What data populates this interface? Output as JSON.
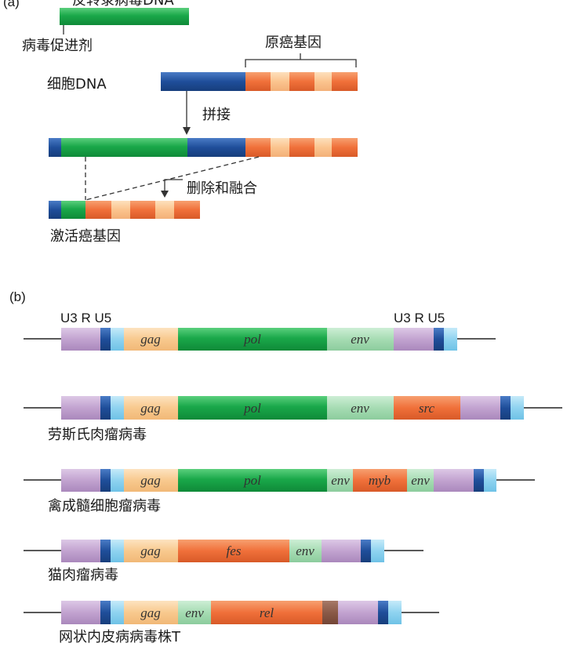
{
  "colors": {
    "viral_green": "#1aa84a",
    "dna_blue": "#1f4e9a",
    "onc_orange": "#f0703a",
    "onc_light": "#fbc48e",
    "ltr_purple": "#c2a3d0",
    "ltr_dark": "#1f4e9a",
    "ltr_light": "#8fd3f0",
    "gag_peach": "#f8c98e",
    "env_mint": "#a6dcb3",
    "rel_brown": "#8a5a48"
  },
  "panel_a": {
    "label": "(a)",
    "viral_dna": "反转录病毒DNA",
    "promoter": "病毒促进剂",
    "proto_oncogene": "原癌基因",
    "cell_dna": "细胞DNA",
    "splice": "拼接",
    "delete_fuse": "删除和融合",
    "activated_oncogene": "激活癌基因"
  },
  "panel_b": {
    "label": "(b)",
    "ltr_left": "U3 R U5",
    "ltr_right": "U3 R U5",
    "genomes": [
      {
        "name": "",
        "segments": [
          "gag",
          "pol",
          "env"
        ]
      },
      {
        "name": "劳斯氏肉瘤病毒",
        "segments": [
          "gag",
          "pol",
          "env",
          "src"
        ]
      },
      {
        "name": "禽成髓细胞瘤病毒",
        "segments": [
          "gag",
          "pol",
          "env",
          "myb",
          "env"
        ]
      },
      {
        "name": "猫肉瘤病毒",
        "segments": [
          "gag",
          "fes",
          "env"
        ]
      },
      {
        "name": "网状内皮病病毒株T",
        "segments": [
          "gag",
          "env",
          "rel"
        ]
      }
    ]
  }
}
